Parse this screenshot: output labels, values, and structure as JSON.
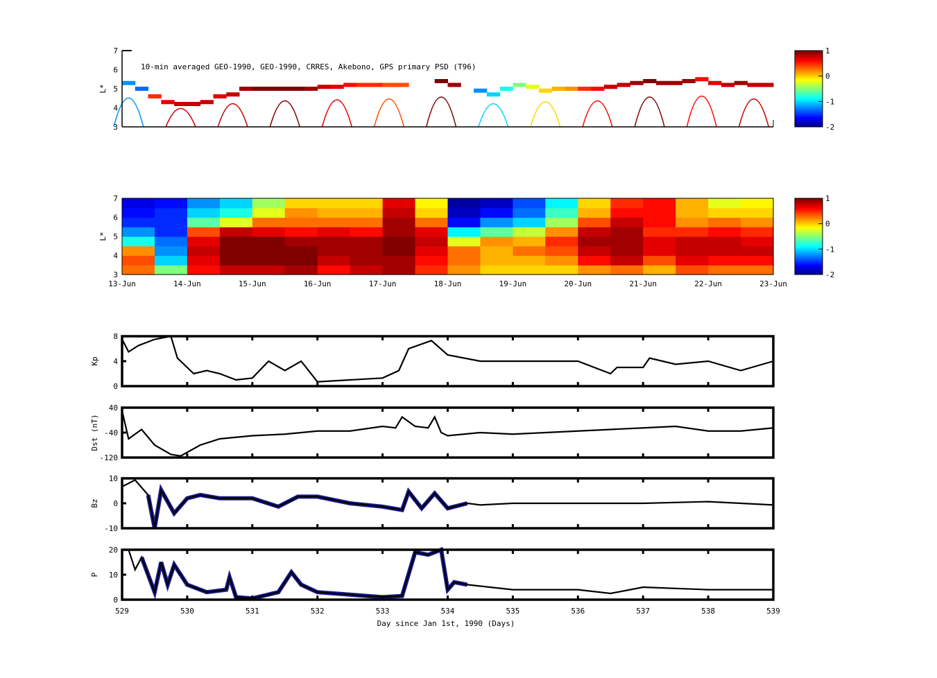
{
  "chart_data": [
    {
      "type": "heatmap",
      "id": "orbit",
      "title": "10-min averaged GEO-1990, GEO-1990, CRRES, Akebono, GPS  primary PSD (T96)",
      "ylabel": "L*",
      "ylim": [
        3,
        7
      ],
      "yticks": [
        "3",
        "4",
        "5",
        "6",
        "7"
      ],
      "clim": [
        -2,
        1
      ],
      "colorbar_ticks": [
        "1",
        "0",
        "-1",
        "-2"
      ],
      "x_days_step": 0.2,
      "L": [
        5.3,
        5.0,
        4.6,
        4.3,
        4.2,
        4.2,
        4.3,
        4.6,
        4.7,
        5.0,
        5.0,
        5.0,
        5.0,
        5.0,
        5.0,
        5.1,
        5.1,
        5.2,
        5.2,
        5.2,
        5.2,
        5.2,
        null,
        null,
        5.4,
        5.2,
        null,
        4.9,
        4.7,
        5.0,
        5.2,
        5.1,
        4.9,
        5.0,
        5.0,
        5.0,
        5.0,
        5.1,
        5.2,
        5.3,
        5.4,
        5.3,
        5.3,
        5.4,
        5.5,
        5.3,
        5.2,
        5.3,
        5.2,
        5.2
      ],
      "values": [
        -1.2,
        -1.3,
        0.5,
        0.7,
        0.8,
        0.8,
        0.8,
        0.7,
        0.8,
        0.9,
        1,
        1,
        1,
        1,
        0.9,
        0.8,
        0.7,
        0.6,
        0.5,
        0.5,
        0.4,
        0.4,
        null,
        null,
        1,
        0.9,
        null,
        -1.2,
        -1,
        -0.8,
        -0.5,
        -0.2,
        0,
        0.1,
        0.2,
        0.5,
        0.6,
        0.8,
        0.8,
        0.9,
        1,
        0.9,
        0.9,
        0.9,
        0.6,
        0.7,
        0.8,
        0.9,
        0.8,
        0.8
      ]
    },
    {
      "type": "heatmap",
      "id": "psd",
      "ylabel": "L*",
      "ylim": [
        3,
        7
      ],
      "yticks": [
        "3",
        "4",
        "5",
        "6",
        "7"
      ],
      "clim": [
        -2,
        1
      ],
      "colorbar_ticks": [
        "1",
        "0",
        "-1",
        "-2"
      ],
      "xticks": [
        "13-Jun",
        "14-Jun",
        "15-Jun",
        "16-Jun",
        "17-Jun",
        "18-Jun",
        "19-Jun",
        "20-Jun",
        "21-Jun",
        "22-Jun",
        "23-Jun"
      ],
      "L_bins": [
        3.25,
        3.75,
        4.25,
        4.75,
        5.25,
        5.75,
        6.25,
        6.75
      ],
      "grid": [
        [
          0.3,
          -0.5,
          0.6,
          0.8,
          0.8,
          0.9,
          0.6,
          0.8,
          0.9,
          0.5,
          0.2,
          0,
          0,
          0,
          0.2,
          0.3,
          0.1,
          0.4,
          0.3,
          0.3
        ],
        [
          0.4,
          -1,
          0.7,
          1,
          1,
          1,
          0.8,
          0.9,
          0.9,
          0.6,
          0.3,
          0.1,
          0.1,
          0.2,
          0.6,
          0.8,
          0.4,
          0.7,
          0.6,
          0.6
        ],
        [
          0.2,
          -1.2,
          0.8,
          1,
          1,
          1,
          0.9,
          0.9,
          1,
          0.7,
          0.3,
          0.1,
          0.3,
          0.4,
          0.8,
          0.9,
          0.7,
          0.8,
          0.8,
          0.8
        ],
        [
          -0.8,
          -1.3,
          0.7,
          1,
          1,
          0.9,
          0.9,
          0.9,
          1,
          0.8,
          -0.2,
          0.2,
          0.1,
          0.5,
          0.9,
          0.9,
          0.7,
          0.8,
          0.8,
          0.7
        ],
        [
          -1.2,
          -1.5,
          0.4,
          0.8,
          0.7,
          0.6,
          0.7,
          0.6,
          0.9,
          0.7,
          -0.9,
          -0.6,
          -0.3,
          0.2,
          0.8,
          0.9,
          0.5,
          0.5,
          0.6,
          0.5
        ],
        [
          -1.5,
          -1.5,
          -0.6,
          -0.2,
          0.3,
          0.3,
          0.3,
          0.3,
          0.9,
          0.3,
          -1.6,
          -1.2,
          -1,
          -0.4,
          0.4,
          0.8,
          0.6,
          0.2,
          0.3,
          0.2
        ],
        [
          -1.6,
          -1.5,
          -1,
          -0.8,
          -0.2,
          0.2,
          0.1,
          0.1,
          0.8,
          0,
          -1.8,
          -1.6,
          -1.3,
          -0.7,
          0.1,
          0.6,
          0.6,
          0.1,
          0,
          0
        ],
        [
          -1.7,
          -1.6,
          -1.2,
          -1,
          -0.4,
          0,
          0,
          0,
          0.7,
          -0.1,
          -1.9,
          -1.8,
          -1.4,
          -0.9,
          0,
          0.5,
          0.6,
          0.1,
          -0.2,
          -0.1
        ]
      ]
    },
    {
      "type": "line",
      "id": "kp",
      "ylabel": "Kp",
      "ylim": [
        0,
        8
      ],
      "yticks": [
        "0",
        "4",
        "8"
      ],
      "x": [
        529,
        529.1,
        529.25,
        529.5,
        529.75,
        529.85,
        530,
        530.1,
        530.3,
        530.5,
        530.75,
        531,
        531.25,
        531.5,
        531.75,
        532,
        532.5,
        533,
        533.25,
        533.4,
        533.75,
        534,
        534.5,
        535,
        536,
        536.5,
        536.6,
        537,
        537.1,
        537.5,
        538,
        538.5,
        539
      ],
      "y": [
        7.5,
        5.5,
        6.5,
        7.5,
        8,
        4.5,
        3,
        2,
        2.5,
        2,
        1,
        1.3,
        4,
        2.5,
        4,
        0.7,
        1,
        1.3,
        2.5,
        6,
        7.3,
        5,
        4,
        4,
        4,
        2,
        3,
        3,
        4.5,
        3.5,
        4,
        2.5,
        4
      ]
    },
    {
      "type": "line",
      "id": "dst",
      "ylabel": "Dst (nT)",
      "ylim": [
        -120,
        40
      ],
      "yticks": [
        "-120",
        "-40",
        "40"
      ],
      "x": [
        529,
        529.1,
        529.3,
        529.5,
        529.75,
        529.9,
        530.2,
        530.5,
        531,
        531.5,
        532,
        532.5,
        533,
        533.2,
        533.3,
        533.5,
        533.7,
        533.8,
        533.9,
        534,
        534.5,
        535,
        535.5,
        536,
        536.5,
        537,
        537.5,
        538,
        538.5,
        539
      ],
      "y": [
        30,
        -60,
        -30,
        -80,
        -110,
        -115,
        -80,
        -60,
        -50,
        -45,
        -35,
        -35,
        -20,
        -25,
        10,
        -20,
        -25,
        10,
        -40,
        -50,
        -40,
        -45,
        -40,
        -35,
        -30,
        -25,
        -20,
        -35,
        -35,
        -25
      ]
    },
    {
      "type": "line",
      "id": "bz",
      "ylabel": "Bz",
      "ylim": [
        -15,
        15
      ],
      "yticks": [
        "-10",
        "0",
        "10"
      ],
      "overlay_until": 534.4,
      "x": [
        529,
        529.2,
        529.4,
        529.5,
        529.6,
        529.8,
        530,
        530.2,
        530.5,
        531,
        531.4,
        531.7,
        532,
        532.5,
        533,
        533.3,
        533.4,
        533.6,
        533.8,
        534,
        534.3,
        534.5,
        535,
        536,
        537,
        538,
        539
      ],
      "y": [
        10,
        14,
        5,
        -15,
        8,
        -6,
        3,
        5,
        3,
        3,
        -2,
        4,
        4,
        0,
        -2,
        -4,
        7,
        -3,
        6,
        -3,
        0,
        -1,
        0,
        0,
        0,
        1,
        -1
      ]
    },
    {
      "type": "line",
      "id": "p",
      "ylabel": "P",
      "ylim": [
        0,
        20
      ],
      "yticks": [
        "0",
        "10",
        "20"
      ],
      "overlay_until": 534.4,
      "xticks": [
        "529",
        "530",
        "531",
        "532",
        "533",
        "534",
        "535",
        "536",
        "537",
        "538",
        "539"
      ],
      "xlabel": "Day since Jan 1st, 1990 (Days)",
      "x": [
        529.1,
        529.2,
        529.3,
        529.5,
        529.6,
        529.7,
        529.8,
        530,
        530.3,
        530.6,
        530.65,
        530.75,
        531,
        531.4,
        531.6,
        531.75,
        532,
        532.5,
        533,
        533.3,
        533.5,
        533.7,
        533.9,
        534,
        534.1,
        534.3,
        535,
        536,
        536.5,
        537,
        538,
        539
      ],
      "y": [
        20,
        12,
        17,
        3,
        15,
        6,
        14,
        6,
        3,
        4,
        9,
        1,
        0.5,
        3,
        11,
        6,
        3,
        2,
        1,
        1.5,
        19,
        18,
        20,
        4,
        7,
        6,
        4,
        4,
        2.5,
        5,
        4,
        4
      ]
    }
  ],
  "colors": {
    "line": "#000000",
    "overlay": "#1a1a8c"
  }
}
